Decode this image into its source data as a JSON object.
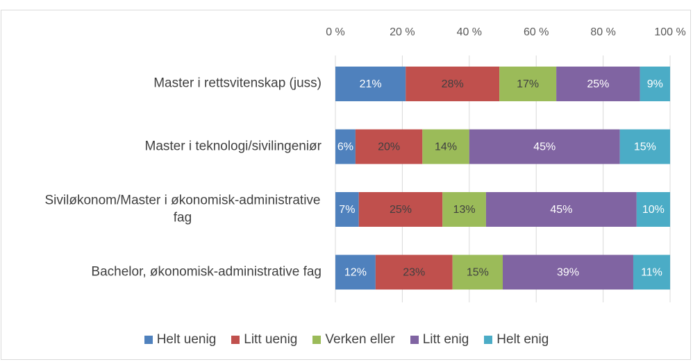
{
  "chart_data": {
    "type": "stacked-bar-horizontal",
    "categories": [
      "Master i rettsvitenskap (juss)",
      "Master i teknologi/sivilingeniør",
      "Siviløkonom/Master i økonomisk-administrative fag",
      "Bachelor, økonomisk-administrative fag"
    ],
    "series": [
      {
        "name": "Helt uenig",
        "color": "#4f81bd",
        "values": [
          21,
          6,
          7,
          12
        ],
        "value_labels": [
          "21%",
          "6%",
          "7%",
          "12%"
        ]
      },
      {
        "name": "Litt uenig",
        "color": "#c0504d",
        "values": [
          28,
          20,
          25,
          23
        ],
        "value_labels": [
          "28%",
          "20%",
          "25%",
          "23%"
        ]
      },
      {
        "name": "Verken eller",
        "color": "#9bbb59",
        "values": [
          17,
          14,
          13,
          15
        ],
        "value_labels": [
          "17%",
          "14%",
          "13%",
          "15%"
        ]
      },
      {
        "name": "Litt enig",
        "color": "#8064a2",
        "values": [
          25,
          45,
          45,
          39
        ],
        "value_labels": [
          "25%",
          "45%",
          "45%",
          "39%"
        ]
      },
      {
        "name": "Helt enig",
        "color": "#4bacc6",
        "values": [
          9,
          15,
          10,
          11
        ],
        "value_labels": [
          "9%",
          "15%",
          "10%",
          "11%"
        ]
      }
    ],
    "xlim": [
      0,
      100
    ],
    "xticks": [
      {
        "value": 0,
        "label": "0 %"
      },
      {
        "value": 20,
        "label": "20 %"
      },
      {
        "value": 40,
        "label": "40 %"
      },
      {
        "value": 60,
        "label": "60 %"
      },
      {
        "value": 80,
        "label": "80 %"
      },
      {
        "value": 100,
        "label": "100 %"
      }
    ],
    "grid": true,
    "legend": "bottom"
  }
}
